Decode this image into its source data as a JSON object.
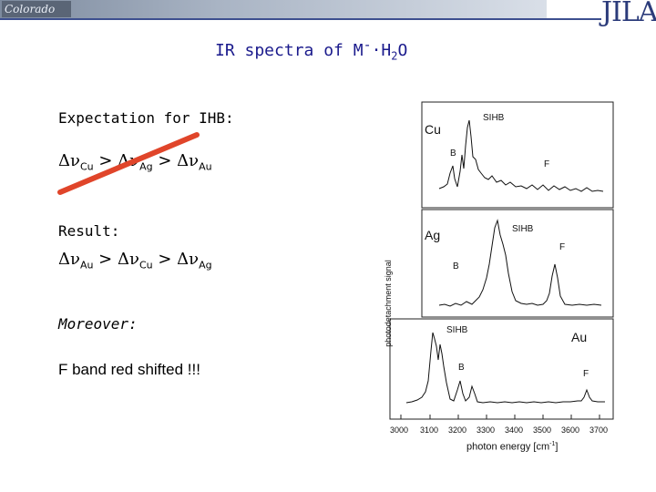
{
  "header": {
    "logo_left": "Colorado",
    "logo_right": "JILA"
  },
  "slide": {
    "title_main": "IR spectra of M",
    "title_sup": "-",
    "title_mid": "·H",
    "title_sub": "2",
    "title_end": "O",
    "expectation_heading": "Expectation for IHB:",
    "expectation": {
      "d1": "Δν",
      "s1": "Cu",
      "gt1": " > ",
      "d2": "Δν",
      "s2": "Ag",
      "gt2": " > ",
      "d3": "Δν",
      "s3": "Au"
    },
    "result_heading": "Result:",
    "result": {
      "d1": "Δν",
      "s1": "Au",
      "gt1": " > ",
      "d2": "Δν",
      "s2": "Cu",
      "gt2": " > ",
      "d3": "Δν",
      "s3": "Ag"
    },
    "moreover_heading": "Moreover:",
    "moreover_text": "F band red shifted !!!"
  },
  "figure": {
    "panels": [
      {
        "metal": "Cu",
        "peaks": [
          "SIHB",
          "B",
          "F"
        ]
      },
      {
        "metal": "Ag",
        "peaks": [
          "SIHB",
          "F",
          "B"
        ]
      },
      {
        "metal": "Au",
        "peaks": [
          "SIHB",
          "B",
          "F"
        ]
      }
    ],
    "x_ticks": [
      "3000",
      "3100",
      "3200",
      "3300",
      "3400",
      "3500",
      "3600",
      "3700"
    ],
    "xlabel": "photon energy [cm",
    "xlabel_sup": "-1",
    "xlabel_end": "]",
    "ylabel": "photodetachment signal",
    "colors": {
      "strike": "#e0452a",
      "title": "#1a1a8c"
    }
  }
}
